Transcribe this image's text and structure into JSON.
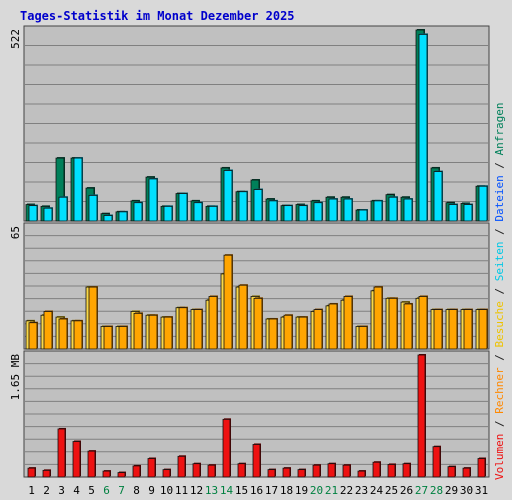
{
  "title": "Tages-Statistik im Monat Dezember 2025",
  "colors": {
    "background": "#d9d9d9",
    "plot": "#c0c0c0",
    "grid": "#808080",
    "anfragen": "#00805a",
    "dateien": "#00e0ff",
    "seiten": "#f8d84a",
    "besuche": "#ffa500",
    "volumen": "#ee1111",
    "title": "#0000cc",
    "weekend": "#008040"
  },
  "chart_data": [
    {
      "type": "bar",
      "panel": "requests-files",
      "max_label": "522",
      "ylim": [
        0,
        522
      ],
      "grid": true,
      "categories": [
        "1",
        "2",
        "3",
        "4",
        "5",
        "6",
        "7",
        "8",
        "9",
        "10",
        "11",
        "12",
        "13",
        "14",
        "15",
        "16",
        "17",
        "18",
        "19",
        "20",
        "21",
        "22",
        "23",
        "24",
        "25",
        "26",
        "27",
        "28",
        "29",
        "30",
        "31"
      ],
      "weekend_days": [
        "6",
        "7",
        "13",
        "14",
        "20",
        "21",
        "27",
        "28"
      ],
      "series": [
        {
          "name": "Anfragen",
          "values": [
            45,
            40,
            172,
            172,
            90,
            20,
            25,
            55,
            120,
            40,
            75,
            55,
            40,
            145,
            80,
            112,
            60,
            42,
            45,
            55,
            65,
            65,
            30,
            55,
            72,
            65,
            522,
            145,
            50,
            48,
            95
          ]
        },
        {
          "name": "Dateien",
          "values": [
            42,
            35,
            65,
            172,
            70,
            15,
            25,
            50,
            115,
            40,
            75,
            50,
            40,
            138,
            80,
            86,
            55,
            42,
            42,
            50,
            60,
            60,
            30,
            55,
            65,
            60,
            510,
            135,
            45,
            45,
            95
          ]
        }
      ]
    },
    {
      "type": "bar",
      "panel": "visits-pages",
      "max_label": "65",
      "ylim": [
        0,
        65
      ],
      "grid": true,
      "series": [
        {
          "name": "Seiten",
          "values": [
            15,
            18,
            17,
            15,
            33,
            12,
            12,
            20,
            18,
            17,
            22,
            21,
            26,
            40,
            33,
            28,
            16,
            17,
            17,
            20,
            23,
            26,
            12,
            31,
            27,
            25,
            27,
            21,
            21,
            21,
            21
          ]
        },
        {
          "name": "Besuche",
          "values": [
            14,
            20,
            16,
            15,
            33,
            12,
            12,
            19,
            18,
            17,
            22,
            21,
            28,
            50,
            34,
            27,
            16,
            18,
            17,
            21,
            24,
            28,
            12,
            33,
            27,
            24,
            28,
            21,
            21,
            21,
            21
          ]
        }
      ]
    },
    {
      "type": "bar",
      "panel": "volume",
      "max_label": "1.65 MB",
      "ylim": [
        0,
        1.65
      ],
      "grid": true,
      "series": [
        {
          "name": "Volumen",
          "values": [
            0.12,
            0.09,
            0.65,
            0.48,
            0.35,
            0.08,
            0.06,
            0.15,
            0.25,
            0.1,
            0.28,
            0.18,
            0.16,
            0.78,
            0.18,
            0.44,
            0.1,
            0.12,
            0.1,
            0.16,
            0.18,
            0.16,
            0.08,
            0.2,
            0.17,
            0.18,
            1.65,
            0.41,
            0.14,
            0.12,
            0.25
          ]
        }
      ]
    }
  ],
  "side_legend": [
    {
      "text": "Volumen",
      "color": "#ee1111"
    },
    {
      "text": " / ",
      "color": "#222222"
    },
    {
      "text": "Rechner",
      "color": "#ff8800"
    },
    {
      "text": " / ",
      "color": "#222222"
    },
    {
      "text": "Besuche",
      "color": "#eec300"
    },
    {
      "text": " / ",
      "color": "#222222"
    },
    {
      "text": "Seiten",
      "color": "#00c8e6"
    },
    {
      "text": " / ",
      "color": "#222222"
    },
    {
      "text": "Dateien",
      "color": "#0050ff"
    },
    {
      "text": " / ",
      "color": "#222222"
    },
    {
      "text": "Anfragen",
      "color": "#00805a"
    }
  ]
}
